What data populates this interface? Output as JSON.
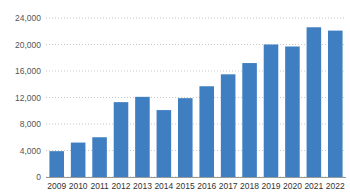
{
  "chart_data": {
    "type": "bar",
    "categories": [
      "2009",
      "2010",
      "2011",
      "2012",
      "2013",
      "2014",
      "2015",
      "2016",
      "2017",
      "2018",
      "2019",
      "2020",
      "2021",
      "2022"
    ],
    "values": [
      3900,
      5200,
      6000,
      11300,
      12100,
      10100,
      11900,
      13700,
      15500,
      17200,
      20000,
      19700,
      22600,
      22100
    ],
    "color": "#3f7fc1",
    "ylim": [
      0,
      24000
    ],
    "yticks": [
      0,
      {
        "value": 4000,
        "label": "4,000"
      },
      {
        "value": 8000,
        "label": "8,000"
      },
      {
        "value": 12000,
        "label": "12,000"
      },
      {
        "value": 16000,
        "label": "16,000"
      },
      {
        "value": 20000,
        "label": "20,000"
      },
      {
        "value": 24000,
        "label": "24,000"
      }
    ],
    "grid": true
  }
}
